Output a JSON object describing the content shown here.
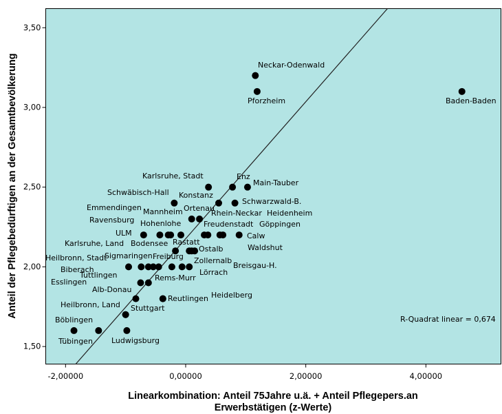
{
  "chart_data": {
    "type": "scatter",
    "x_label": [
      "Linearkombination: Anteil  75Jahre u.ä. + Anteil Pflegepers.an",
      "Erwerbstätigen (z-Werte)"
    ],
    "y_label": "Anteil der Pflegebedürftigen an der Gesamtbevölkerung",
    "annotation": "R-Quadrat linear = 0,674",
    "background": "#b3e4e4",
    "color": "#000000",
    "grid": false,
    "xlim": [
      -2.33,
      5.25
    ],
    "ylim": [
      1.39,
      3.62
    ],
    "xticks": [
      {
        "value": -2,
        "label": "-2,00000"
      },
      {
        "value": 0,
        "label": "0,00000"
      },
      {
        "value": 2,
        "label": "2,00000"
      },
      {
        "value": 4,
        "label": "4,00000"
      }
    ],
    "yticks": [
      {
        "value": 1.5,
        "label": "1,50"
      },
      {
        "value": 2,
        "label": "2,00"
      },
      {
        "value": 2.5,
        "label": "2,50"
      },
      {
        "value": 3,
        "label": "3,00"
      },
      {
        "value": 3.5,
        "label": "3,50"
      }
    ],
    "fit_line": {
      "x": [
        -1.83,
        3.36
      ],
      "y": [
        1.39,
        3.62
      ]
    },
    "labels": [
      "Neckar-Odenwald",
      "Pforzheim",
      "Baden-Baden",
      "Karlsruhe, Stadt",
      "Enz",
      "Main-Tauber",
      "Schwäbisch-Hall",
      "Konstanz",
      "Schwarzwald-B.",
      "Mannheim",
      "Ortenau",
      "Rhein-Neckar",
      "Heidenheim",
      "Emmendingen",
      "Ravensburg",
      "Hohenlohe",
      "ULM",
      "Freudenstadt",
      "Göppingen",
      "Calw",
      "Karlsruhe, Land",
      "Bodensee",
      "Rastatt",
      "Ostalb",
      "Waldshut",
      "Heilbronn, Stadt",
      "Sigmaringen",
      "Freiburg",
      "Zollernalb",
      "Biberach",
      "Breisgau-H.",
      "Tuttlingen",
      "Lörrach",
      "Rems-Murr",
      "Esslingen",
      "Alb-Donau",
      "Heidelberg",
      "Reutlingen",
      "Heilbronn, Land",
      "Stuttgart",
      "Böblingen",
      "Tübingen",
      "Ludwigsburg"
    ],
    "x": [
      1.16,
      1.19,
      4.6,
      0.38,
      0.78,
      1.03,
      -0.19,
      0.55,
      0.82,
      0.1,
      0.23,
      0.31,
      0.37,
      -0.08,
      -0.43,
      -0.29,
      -0.7,
      0.57,
      0.62,
      0.89,
      -0.17,
      -0.25,
      0.06,
      0.1,
      0.15,
      -0.95,
      -0.74,
      -0.54,
      -0.23,
      -0.62,
      -0.06,
      -0.45,
      0.06,
      -0.62,
      -0.75,
      -0.83,
      -0.38,
      -0.38,
      -1.0,
      -1.0,
      -1.86,
      -1.45,
      -0.98
    ],
    "y": [
      3.2,
      3.1,
      3.1,
      2.5,
      2.5,
      2.5,
      2.4,
      2.4,
      2.4,
      2.3,
      2.3,
      2.2,
      2.2,
      2.2,
      2.2,
      2.2,
      2.2,
      2.2,
      2.2,
      2.2,
      2.1,
      2.2,
      2.1,
      2.1,
      2.1,
      2.0,
      2.0,
      2.0,
      2.0,
      2.0,
      2.0,
      2.0,
      2.0,
      1.9,
      1.9,
      1.8,
      1.8,
      1.8,
      1.7,
      1.7,
      1.6,
      1.6,
      1.6
    ]
  }
}
